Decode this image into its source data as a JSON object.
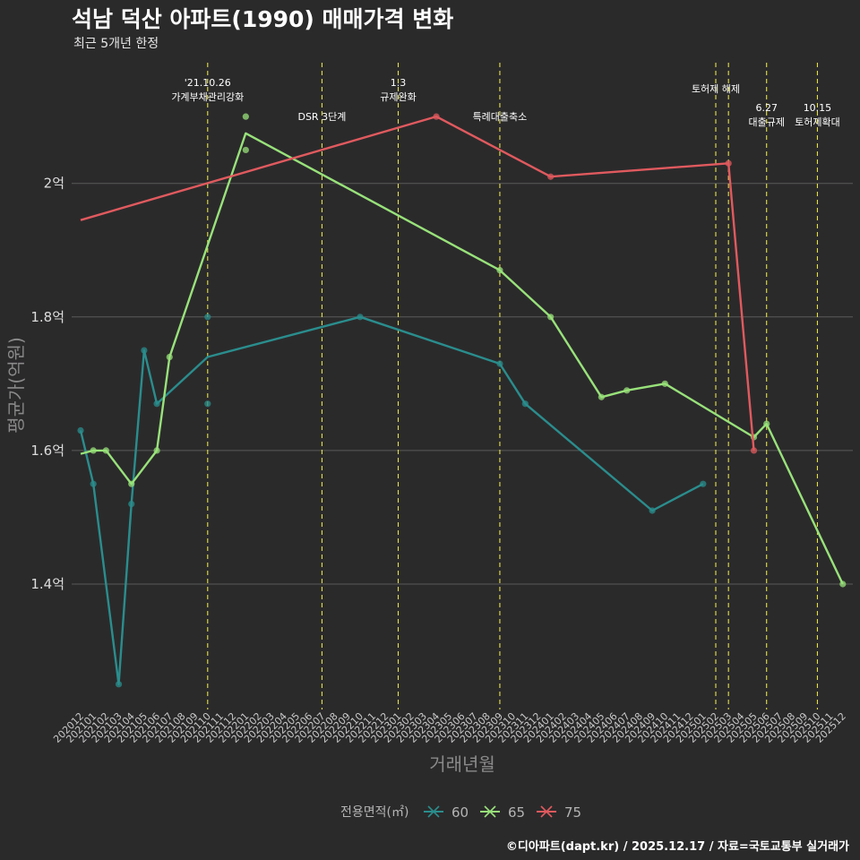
{
  "title": "석남 덕산 아파트(1990) 매매가격 변화",
  "subtitle": "최근 5개년 한정",
  "caption": "©디아파트(dapt.kr) / 2025.12.17 / 자료=국토교통부 실거래가",
  "chart_data": {
    "type": "line",
    "xlabel": "거래년월",
    "ylabel": "평균가(억원)",
    "ylim": [
      1.2,
      2.27
    ],
    "yticks": [
      1.4,
      1.6,
      1.8,
      2.0
    ],
    "ytick_labels": [
      "1.4억",
      "1.6억",
      "1.8억",
      "2억"
    ],
    "grid": true,
    "months": [
      "202012",
      "202101",
      "202102",
      "202103",
      "202104",
      "202105",
      "202106",
      "202107",
      "202108",
      "202109",
      "202110",
      "202111",
      "202112",
      "202201",
      "202202",
      "202203",
      "202204",
      "202205",
      "202206",
      "202207",
      "202208",
      "202209",
      "202210",
      "202211",
      "202212",
      "202301",
      "202302",
      "202303",
      "202304",
      "202305",
      "202306",
      "202307",
      "202308",
      "202309",
      "202310",
      "202311",
      "202312",
      "202401",
      "202402",
      "202403",
      "202404",
      "202405",
      "202406",
      "202407",
      "202408",
      "202409",
      "202410",
      "202411",
      "202412",
      "202501",
      "202502",
      "202503",
      "202504",
      "202505",
      "202506",
      "202507",
      "202508",
      "202509",
      "202510",
      "202511",
      "202512"
    ],
    "legend_title": "전용면적(㎡)",
    "legend_position": "bottom",
    "series": [
      {
        "name": "60",
        "color": "#2a8d8d",
        "line": [
          [
            "202012",
            1.63
          ],
          [
            "202101",
            1.55
          ],
          [
            "202103",
            1.25
          ],
          [
            "202104",
            1.52
          ],
          [
            "202105",
            1.75
          ],
          [
            "202106",
            1.67
          ],
          [
            "202110",
            1.74
          ],
          [
            "202210",
            1.8
          ],
          [
            "202309",
            1.73
          ],
          [
            "202311",
            1.67
          ],
          [
            "202409",
            1.51
          ],
          [
            "202501",
            1.55
          ]
        ],
        "points": [
          [
            "202012",
            1.63
          ],
          [
            "202101",
            1.55
          ],
          [
            "202103",
            1.25
          ],
          [
            "202104",
            1.52
          ],
          [
            "202105",
            1.75
          ],
          [
            "202106",
            1.67
          ],
          [
            "202110",
            1.8
          ],
          [
            "202110",
            1.67
          ],
          [
            "202210",
            1.8
          ],
          [
            "202309",
            1.73
          ],
          [
            "202311",
            1.67
          ],
          [
            "202409",
            1.51
          ],
          [
            "202501",
            1.55
          ]
        ]
      },
      {
        "name": "65",
        "color": "#98e27a",
        "line": [
          [
            "202012",
            1.595
          ],
          [
            "202101",
            1.6
          ],
          [
            "202102",
            1.6
          ],
          [
            "202104",
            1.55
          ],
          [
            "202106",
            1.6
          ],
          [
            "202107",
            1.74
          ],
          [
            "202201",
            2.075
          ],
          [
            "202309",
            1.87
          ],
          [
            "202401",
            1.8
          ],
          [
            "202405",
            1.68
          ],
          [
            "202407",
            1.69
          ],
          [
            "202410",
            1.7
          ],
          [
            "202505",
            1.62
          ],
          [
            "202506",
            1.64
          ],
          [
            "202512",
            1.4
          ]
        ],
        "points": [
          [
            "202101",
            1.6
          ],
          [
            "202102",
            1.6
          ],
          [
            "202104",
            1.55
          ],
          [
            "202106",
            1.6
          ],
          [
            "202107",
            1.74
          ],
          [
            "202201",
            2.1
          ],
          [
            "202201",
            2.05
          ],
          [
            "202309",
            1.87
          ],
          [
            "202401",
            1.8
          ],
          [
            "202405",
            1.68
          ],
          [
            "202407",
            1.69
          ],
          [
            "202410",
            1.7
          ],
          [
            "202505",
            1.62
          ],
          [
            "202506",
            1.64
          ],
          [
            "202512",
            1.4
          ]
        ]
      },
      {
        "name": "75",
        "color": "#e05a5e",
        "line": [
          [
            "202012",
            1.945
          ],
          [
            "202304",
            2.1
          ],
          [
            "202401",
            2.01
          ],
          [
            "202503",
            2.03
          ],
          [
            "202505",
            1.6
          ]
        ],
        "points": [
          [
            "202304",
            2.1
          ],
          [
            "202401",
            2.01
          ],
          [
            "202503",
            2.03
          ],
          [
            "202505",
            1.6
          ]
        ]
      }
    ],
    "events": [
      {
        "month": "202110",
        "label": [
          "'21.10.26",
          "가계부채관리강화"
        ],
        "level": 0
      },
      {
        "month": "202207",
        "label": [
          "DSR 3단계"
        ],
        "level": 1
      },
      {
        "month": "202301",
        "label": [
          "1.3",
          "규제완화"
        ],
        "level": 0
      },
      {
        "month": "202309",
        "label": [
          "특례대출축소"
        ],
        "level": 1
      },
      {
        "month": "202502",
        "label": [
          "토허제 해제"
        ],
        "level": 2
      },
      {
        "month": "202503",
        "label": [],
        "level": 2
      },
      {
        "month": "202506",
        "label": [
          "6.27",
          "대출규제"
        ],
        "level": 3
      },
      {
        "month": "202510",
        "label": [
          "10.15",
          "토허제확대"
        ],
        "level": 3
      }
    ]
  }
}
